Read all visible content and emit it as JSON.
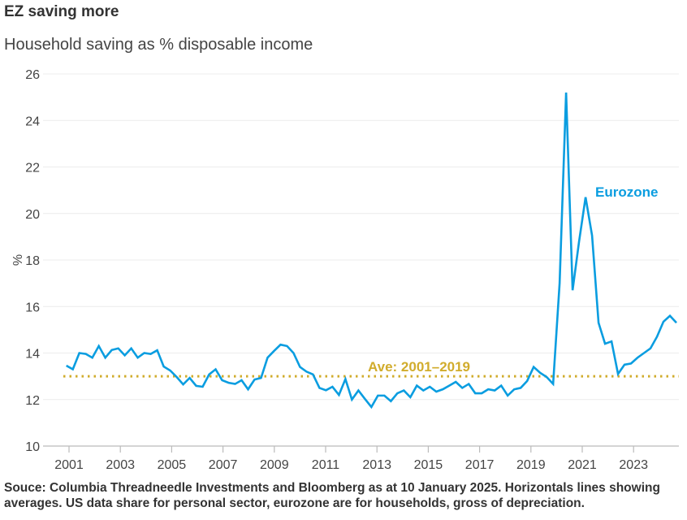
{
  "title": "EZ saving more",
  "subtitle": "Household saving as % disposable income",
  "source": "Souce: Columbia Threadneedle Investments and Bloomberg as at 10 January 2025. Horizontals lines showing averages. US data share for personal sector, eurozone are for households, gross of depreciation.",
  "chart_data": {
    "type": "line",
    "title": "EZ saving more",
    "subtitle": "Household saving as % disposable income",
    "xlabel": "",
    "ylabel": "%",
    "ylim": [
      10,
      26
    ],
    "yticks": [
      "10",
      "12",
      "14",
      "16",
      "18",
      "20",
      "22",
      "24",
      "26"
    ],
    "xticks": [
      "2001",
      "2003",
      "2005",
      "2007",
      "2009",
      "2011",
      "2013",
      "2015",
      "2017",
      "2019",
      "2021",
      "2023"
    ],
    "grid": "horizontal",
    "legend": "none",
    "colors": {
      "eurozone": "#0a9de0",
      "average": "#d1ac2c"
    },
    "x": [
      "2000Q4",
      "2001Q1",
      "2001Q2",
      "2001Q3",
      "2001Q4",
      "2002Q1",
      "2002Q2",
      "2002Q3",
      "2002Q4",
      "2003Q1",
      "2003Q2",
      "2003Q3",
      "2003Q4",
      "2004Q1",
      "2004Q2",
      "2004Q3",
      "2004Q4",
      "2005Q1",
      "2005Q2",
      "2005Q3",
      "2005Q4",
      "2006Q1",
      "2006Q2",
      "2006Q3",
      "2006Q4",
      "2007Q1",
      "2007Q2",
      "2007Q3",
      "2007Q4",
      "2008Q1",
      "2008Q2",
      "2008Q3",
      "2008Q4",
      "2009Q1",
      "2009Q2",
      "2009Q3",
      "2009Q4",
      "2010Q1",
      "2010Q2",
      "2010Q3",
      "2010Q4",
      "2011Q1",
      "2011Q2",
      "2011Q3",
      "2011Q4",
      "2012Q1",
      "2012Q2",
      "2012Q3",
      "2012Q4",
      "2013Q1",
      "2013Q2",
      "2013Q3",
      "2013Q4",
      "2014Q1",
      "2014Q2",
      "2014Q3",
      "2014Q4",
      "2015Q1",
      "2015Q2",
      "2015Q3",
      "2015Q4",
      "2016Q1",
      "2016Q2",
      "2016Q3",
      "2016Q4",
      "2017Q1",
      "2017Q2",
      "2017Q3",
      "2017Q4",
      "2018Q1",
      "2018Q2",
      "2018Q3",
      "2018Q4",
      "2019Q1",
      "2019Q2",
      "2019Q3",
      "2019Q4",
      "2020Q1",
      "2020Q2",
      "2020Q3",
      "2020Q4",
      "2021Q1",
      "2021Q2",
      "2021Q3",
      "2021Q4",
      "2022Q1",
      "2022Q2",
      "2022Q3",
      "2022Q4",
      "2023Q1",
      "2023Q2",
      "2023Q3",
      "2023Q4",
      "2024Q1",
      "2024Q2"
    ],
    "series": [
      {
        "name": "Eurozone",
        "values": [
          13.46,
          13.3,
          14.0,
          13.96,
          13.8,
          14.3,
          13.8,
          14.13,
          14.2,
          13.9,
          14.2,
          13.8,
          14.0,
          13.96,
          14.12,
          13.42,
          13.25,
          12.97,
          12.65,
          12.93,
          12.59,
          12.55,
          13.08,
          13.3,
          12.83,
          12.72,
          12.67,
          12.83,
          12.44,
          12.86,
          12.93,
          13.8,
          14.09,
          14.36,
          14.3,
          14.0,
          13.4,
          13.2,
          13.08,
          12.5,
          12.4,
          12.55,
          12.2,
          12.88,
          12.0,
          12.39,
          12.03,
          11.68,
          12.17,
          12.17,
          11.93,
          12.27,
          12.39,
          12.1,
          12.6,
          12.39,
          12.55,
          12.34,
          12.44,
          12.6,
          12.76,
          12.5,
          12.67,
          12.27,
          12.27,
          12.44,
          12.39,
          12.6,
          12.17,
          12.44,
          12.5,
          12.8,
          13.4,
          13.15,
          12.97,
          12.67,
          17.0,
          25.2,
          16.7,
          18.8,
          20.7,
          19.05,
          15.3,
          14.4,
          14.5,
          13.1,
          13.5,
          13.55,
          13.8,
          14.0,
          14.2,
          14.7,
          15.35,
          15.6,
          15.3
        ]
      }
    ],
    "reference_lines": [
      {
        "label": "Ave: 2001–2019",
        "value": 13.0
      }
    ]
  }
}
